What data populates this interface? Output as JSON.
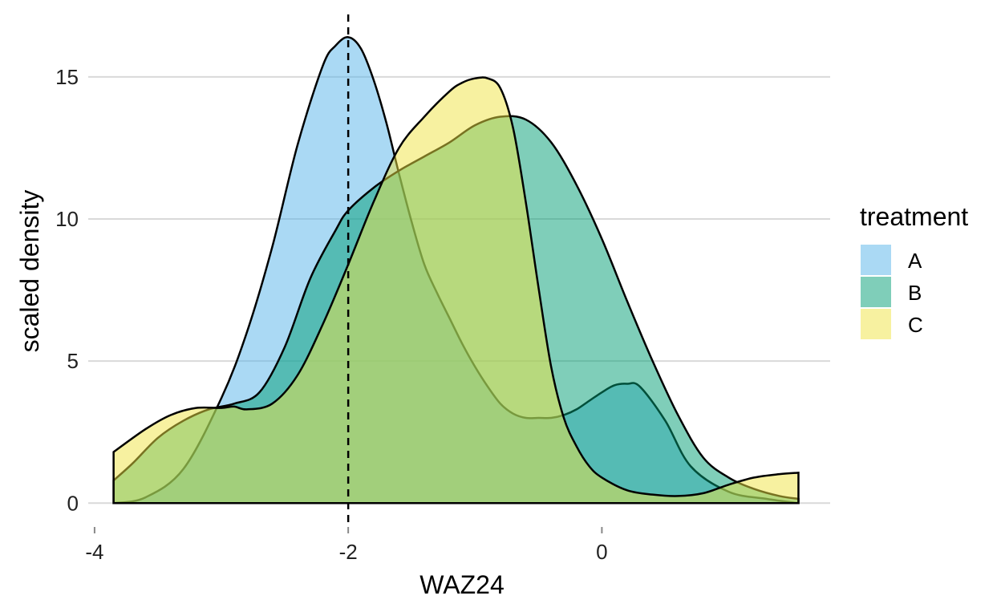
{
  "chart_data": {
    "type": "area",
    "xlabel": "WAZ24",
    "ylabel": "scaled density",
    "xlim": [
      -4.05,
      1.8
    ],
    "ylim": [
      -0.5,
      17.2
    ],
    "x_ticks": [
      -4,
      -2,
      0
    ],
    "x_tick_labels": [
      "-4",
      "-2",
      "0"
    ],
    "y_ticks": [
      0,
      5,
      10,
      15
    ],
    "y_tick_labels": [
      "0",
      "5",
      "10",
      "15"
    ],
    "grid": true,
    "reference_line": {
      "axis": "x",
      "value": -2,
      "style": "dashed"
    },
    "legend": {
      "title": "treatment",
      "position": "right"
    },
    "series": [
      {
        "name": "A",
        "color": "#56B4E9",
        "x": [
          -3.85,
          -3.6,
          -3.3,
          -3.0,
          -2.8,
          -2.6,
          -2.4,
          -2.2,
          -2.1,
          -2.0,
          -1.9,
          -1.8,
          -1.7,
          -1.6,
          -1.5,
          -1.4,
          -1.3,
          -1.2,
          -1.1,
          -1.0,
          -0.9,
          -0.8,
          -0.7,
          -0.6,
          -0.5,
          -0.4,
          -0.3,
          -0.2,
          -0.1,
          0.0,
          0.1,
          0.2,
          0.3,
          0.5,
          0.7,
          1.0,
          1.3,
          1.55
        ],
        "values": [
          0.0,
          0.2,
          1.2,
          3.7,
          6.0,
          9.0,
          12.6,
          15.4,
          16.1,
          16.4,
          16.0,
          14.9,
          13.4,
          11.6,
          9.9,
          8.4,
          7.4,
          6.5,
          5.6,
          4.8,
          4.1,
          3.5,
          3.15,
          3.0,
          3.0,
          3.0,
          3.1,
          3.3,
          3.6,
          3.9,
          4.15,
          4.2,
          4.1,
          2.9,
          1.3,
          0.4,
          0.15,
          0.0
        ]
      },
      {
        "name": "B",
        "color": "#009E73",
        "x": [
          -3.85,
          -3.7,
          -3.5,
          -3.3,
          -3.1,
          -2.9,
          -2.7,
          -2.5,
          -2.3,
          -2.1,
          -2.0,
          -1.8,
          -1.6,
          -1.4,
          -1.2,
          -1.0,
          -0.8,
          -0.6,
          -0.4,
          -0.2,
          0.0,
          0.2,
          0.4,
          0.6,
          0.8,
          1.0,
          1.2,
          1.4,
          1.55
        ],
        "values": [
          0.8,
          1.4,
          2.3,
          2.9,
          3.3,
          3.5,
          3.9,
          5.5,
          7.9,
          9.6,
          10.3,
          11.1,
          11.7,
          12.2,
          12.7,
          13.3,
          13.6,
          13.5,
          12.7,
          11.2,
          9.3,
          7.1,
          5.0,
          3.1,
          1.6,
          0.9,
          0.5,
          0.25,
          0.15
        ]
      },
      {
        "name": "C",
        "color": "#F0E442",
        "x": [
          -3.85,
          -3.6,
          -3.4,
          -3.2,
          -3.0,
          -2.9,
          -2.8,
          -2.6,
          -2.4,
          -2.2,
          -2.0,
          -1.8,
          -1.6,
          -1.4,
          -1.2,
          -1.1,
          -1.0,
          -0.9,
          -0.8,
          -0.7,
          -0.6,
          -0.5,
          -0.4,
          -0.3,
          -0.2,
          -0.1,
          0.0,
          0.2,
          0.4,
          0.6,
          0.8,
          1.0,
          1.2,
          1.4,
          1.55
        ],
        "values": [
          1.8,
          2.6,
          3.1,
          3.35,
          3.35,
          3.4,
          3.3,
          3.5,
          4.5,
          6.3,
          8.4,
          10.6,
          12.5,
          13.6,
          14.5,
          14.8,
          14.95,
          14.95,
          14.6,
          13.2,
          10.6,
          7.6,
          4.8,
          3.0,
          2.0,
          1.3,
          0.9,
          0.45,
          0.3,
          0.25,
          0.35,
          0.65,
          0.9,
          1.02,
          1.07
        ]
      }
    ]
  }
}
